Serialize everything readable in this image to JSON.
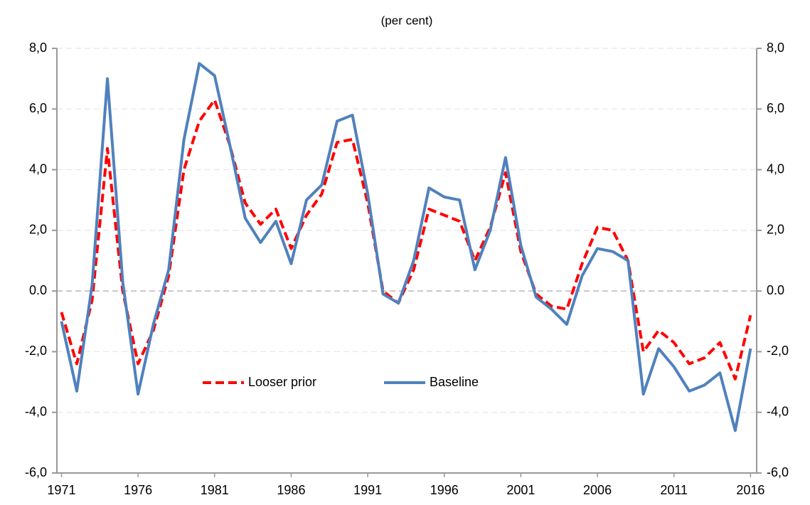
{
  "chart_data": {
    "type": "line",
    "title": "(per cent)",
    "x": [
      1971,
      1972,
      1973,
      1974,
      1975,
      1976,
      1977,
      1978,
      1979,
      1980,
      1981,
      1982,
      1983,
      1984,
      1985,
      1986,
      1987,
      1988,
      1989,
      1990,
      1991,
      1992,
      1993,
      1994,
      1995,
      1996,
      1997,
      1998,
      1999,
      2000,
      2001,
      2002,
      2003,
      2004,
      2005,
      2006,
      2007,
      2008,
      2009,
      2010,
      2011,
      2012,
      2013,
      2014,
      2015,
      2016
    ],
    "series": [
      {
        "name": "Looser prior",
        "color": "#ff0000",
        "dash": true,
        "values": [
          -0.7,
          -2.4,
          -0.3,
          4.7,
          0.0,
          -2.4,
          -1.3,
          0.5,
          4.0,
          5.6,
          6.3,
          4.8,
          2.9,
          2.2,
          2.7,
          1.4,
          2.5,
          3.2,
          4.9,
          5.0,
          2.9,
          0.0,
          -0.4,
          0.7,
          2.7,
          2.5,
          2.3,
          1.0,
          2.1,
          3.9,
          1.3,
          -0.1,
          -0.5,
          -0.6,
          0.9,
          2.1,
          2.0,
          1.0,
          -2.0,
          -1.3,
          -1.7,
          -2.4,
          -2.2,
          -1.7,
          -2.9,
          -0.8
        ]
      },
      {
        "name": "Baseline",
        "color": "#4f81bd",
        "dash": false,
        "values": [
          -1.0,
          -3.3,
          0.2,
          7.0,
          0.3,
          -3.4,
          -1.1,
          0.7,
          5.0,
          7.5,
          7.1,
          4.8,
          2.4,
          1.6,
          2.3,
          0.9,
          3.0,
          3.5,
          5.6,
          5.8,
          3.2,
          -0.1,
          -0.4,
          1.0,
          3.4,
          3.1,
          3.0,
          0.7,
          2.0,
          4.4,
          1.5,
          -0.2,
          -0.6,
          -1.1,
          0.5,
          1.4,
          1.3,
          1.0,
          -3.4,
          -1.9,
          -2.5,
          -3.3,
          -3.1,
          -2.7,
          -4.6,
          -1.9
        ]
      }
    ],
    "xlim": [
      1970.7,
      2016.4
    ],
    "xticks": [
      1971,
      1976,
      1981,
      1986,
      1991,
      1996,
      2001,
      2006,
      2011,
      2016
    ],
    "ylim": [
      -6,
      8
    ],
    "yticks": [
      {
        "value": -6,
        "label": "-6,0"
      },
      {
        "value": -4,
        "label": "-4,0"
      },
      {
        "value": -2,
        "label": "-2,0"
      },
      {
        "value": 0,
        "label": "0.0"
      },
      {
        "value": 2,
        "label": "2,0"
      },
      {
        "value": 4,
        "label": "4,0"
      },
      {
        "value": 6,
        "label": "6,0"
      },
      {
        "value": 8,
        "label": "8,0"
      }
    ],
    "y2lim": [
      -6,
      8
    ],
    "y2ticks": [
      {
        "value": -6,
        "label": "-6,0"
      },
      {
        "value": -4,
        "label": "-4,0"
      },
      {
        "value": -2,
        "label": "-2,0"
      },
      {
        "value": 0,
        "label": "0.0"
      },
      {
        "value": 2,
        "label": "2,0"
      },
      {
        "value": 4,
        "label": "4,0"
      },
      {
        "value": 6,
        "label": "6,0"
      },
      {
        "value": 8,
        "label": "8,0"
      }
    ],
    "grid": true
  }
}
